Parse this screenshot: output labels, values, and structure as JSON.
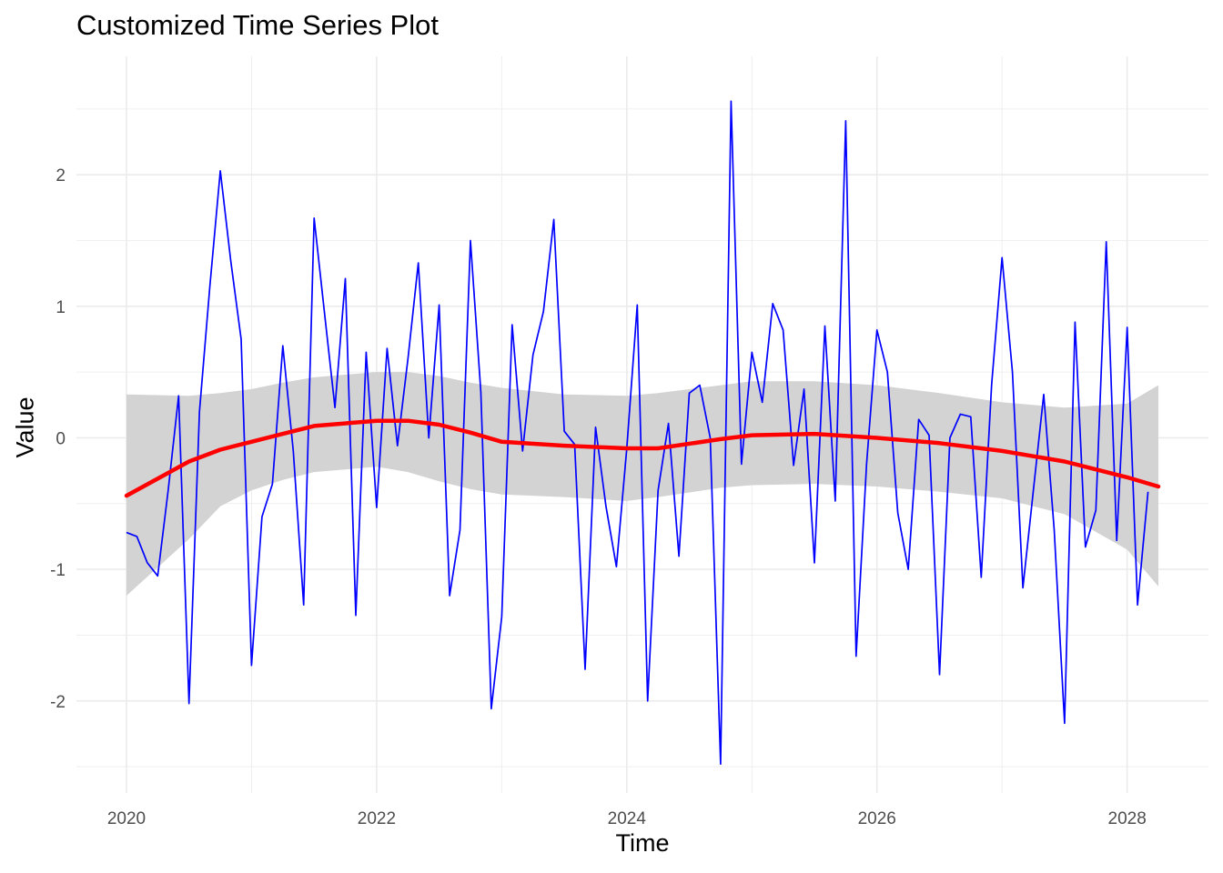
{
  "chart_data": {
    "type": "line",
    "title": "Customized Time Series Plot",
    "xlabel": "Time",
    "ylabel": "Value",
    "xlim": [
      2019.6,
      2028.65
    ],
    "ylim": [
      -2.7,
      2.9
    ],
    "x_ticks": [
      2020,
      2022,
      2024,
      2026,
      2028
    ],
    "x_tick_labels": [
      "2020",
      "2022",
      "2024",
      "2026",
      "2028"
    ],
    "y_ticks": [
      -2,
      -1,
      0,
      1,
      2
    ],
    "y_tick_labels": [
      "-2",
      "-1",
      "0",
      "1",
      "2"
    ],
    "grid": true,
    "legend": "none",
    "x_start": 2020,
    "x_step": 0.08333333,
    "series": [
      {
        "color": "#0000ff",
        "values": [
          -0.72,
          -0.75,
          -0.95,
          -1.05,
          -0.4,
          0.32,
          -2.02,
          0.2,
          1.15,
          2.03,
          1.35,
          0.75,
          -1.73,
          -0.6,
          -0.35,
          0.7,
          -0.1,
          -1.27,
          1.67,
          0.95,
          0.23,
          1.21,
          -1.35,
          0.65,
          -0.53,
          0.68,
          -0.06,
          0.6,
          1.33,
          0.0,
          1.01,
          -1.2,
          -0.7,
          1.5,
          0.35,
          -2.06,
          -1.36,
          0.86,
          -0.1,
          0.63,
          0.96,
          1.66,
          0.05,
          -0.05,
          -1.76,
          0.08,
          -0.52,
          -0.98,
          -0.08,
          1.01,
          -2.0,
          -0.4,
          0.11,
          -0.9,
          0.34,
          0.4,
          0.0,
          -2.48,
          2.56,
          -0.2,
          0.65,
          0.27,
          1.02,
          0.82,
          -0.21,
          0.37,
          -0.95,
          0.85,
          -0.48,
          2.41,
          -1.66,
          -0.2,
          0.82,
          0.5,
          -0.57,
          -1.0,
          0.14,
          0.02,
          -1.8,
          0.0,
          0.18,
          0.16,
          -1.06,
          0.4,
          1.37,
          0.5,
          -1.14,
          -0.4,
          0.33,
          -0.7,
          -2.17,
          0.88,
          -0.83,
          -0.55,
          1.49,
          -0.78,
          0.84,
          -1.27,
          -0.41
        ]
      }
    ],
    "smooth": {
      "color": "#ff0000",
      "x": [
        2020.0,
        2020.5,
        2020.75,
        2021.0,
        2021.25,
        2021.5,
        2022.0,
        2022.25,
        2022.5,
        2022.75,
        2023.0,
        2023.5,
        2024.0,
        2024.25,
        2024.75,
        2025.0,
        2025.5,
        2026.0,
        2026.5,
        2027.0,
        2027.5,
        2028.0,
        2028.25
      ],
      "y": [
        -0.44,
        -0.18,
        -0.09,
        -0.03,
        0.03,
        0.09,
        0.13,
        0.13,
        0.1,
        0.04,
        -0.03,
        -0.06,
        -0.08,
        -0.08,
        -0.01,
        0.02,
        0.03,
        0.0,
        -0.04,
        -0.1,
        -0.18,
        -0.3,
        -0.37
      ],
      "ci_lower": [
        -1.2,
        -0.77,
        -0.52,
        -0.4,
        -0.32,
        -0.26,
        -0.22,
        -0.26,
        -0.33,
        -0.39,
        -0.43,
        -0.45,
        -0.48,
        -0.45,
        -0.38,
        -0.36,
        -0.35,
        -0.37,
        -0.41,
        -0.46,
        -0.58,
        -0.85,
        -1.13
      ],
      "ci_upper": [
        0.33,
        0.32,
        0.34,
        0.37,
        0.42,
        0.46,
        0.5,
        0.5,
        0.47,
        0.42,
        0.38,
        0.33,
        0.32,
        0.34,
        0.4,
        0.43,
        0.43,
        0.4,
        0.34,
        0.27,
        0.23,
        0.26,
        0.4
      ]
    },
    "colors": {
      "band": "#d3d3d3",
      "grid": "#ebebeb",
      "tick_text": "#4d4d4d"
    }
  }
}
